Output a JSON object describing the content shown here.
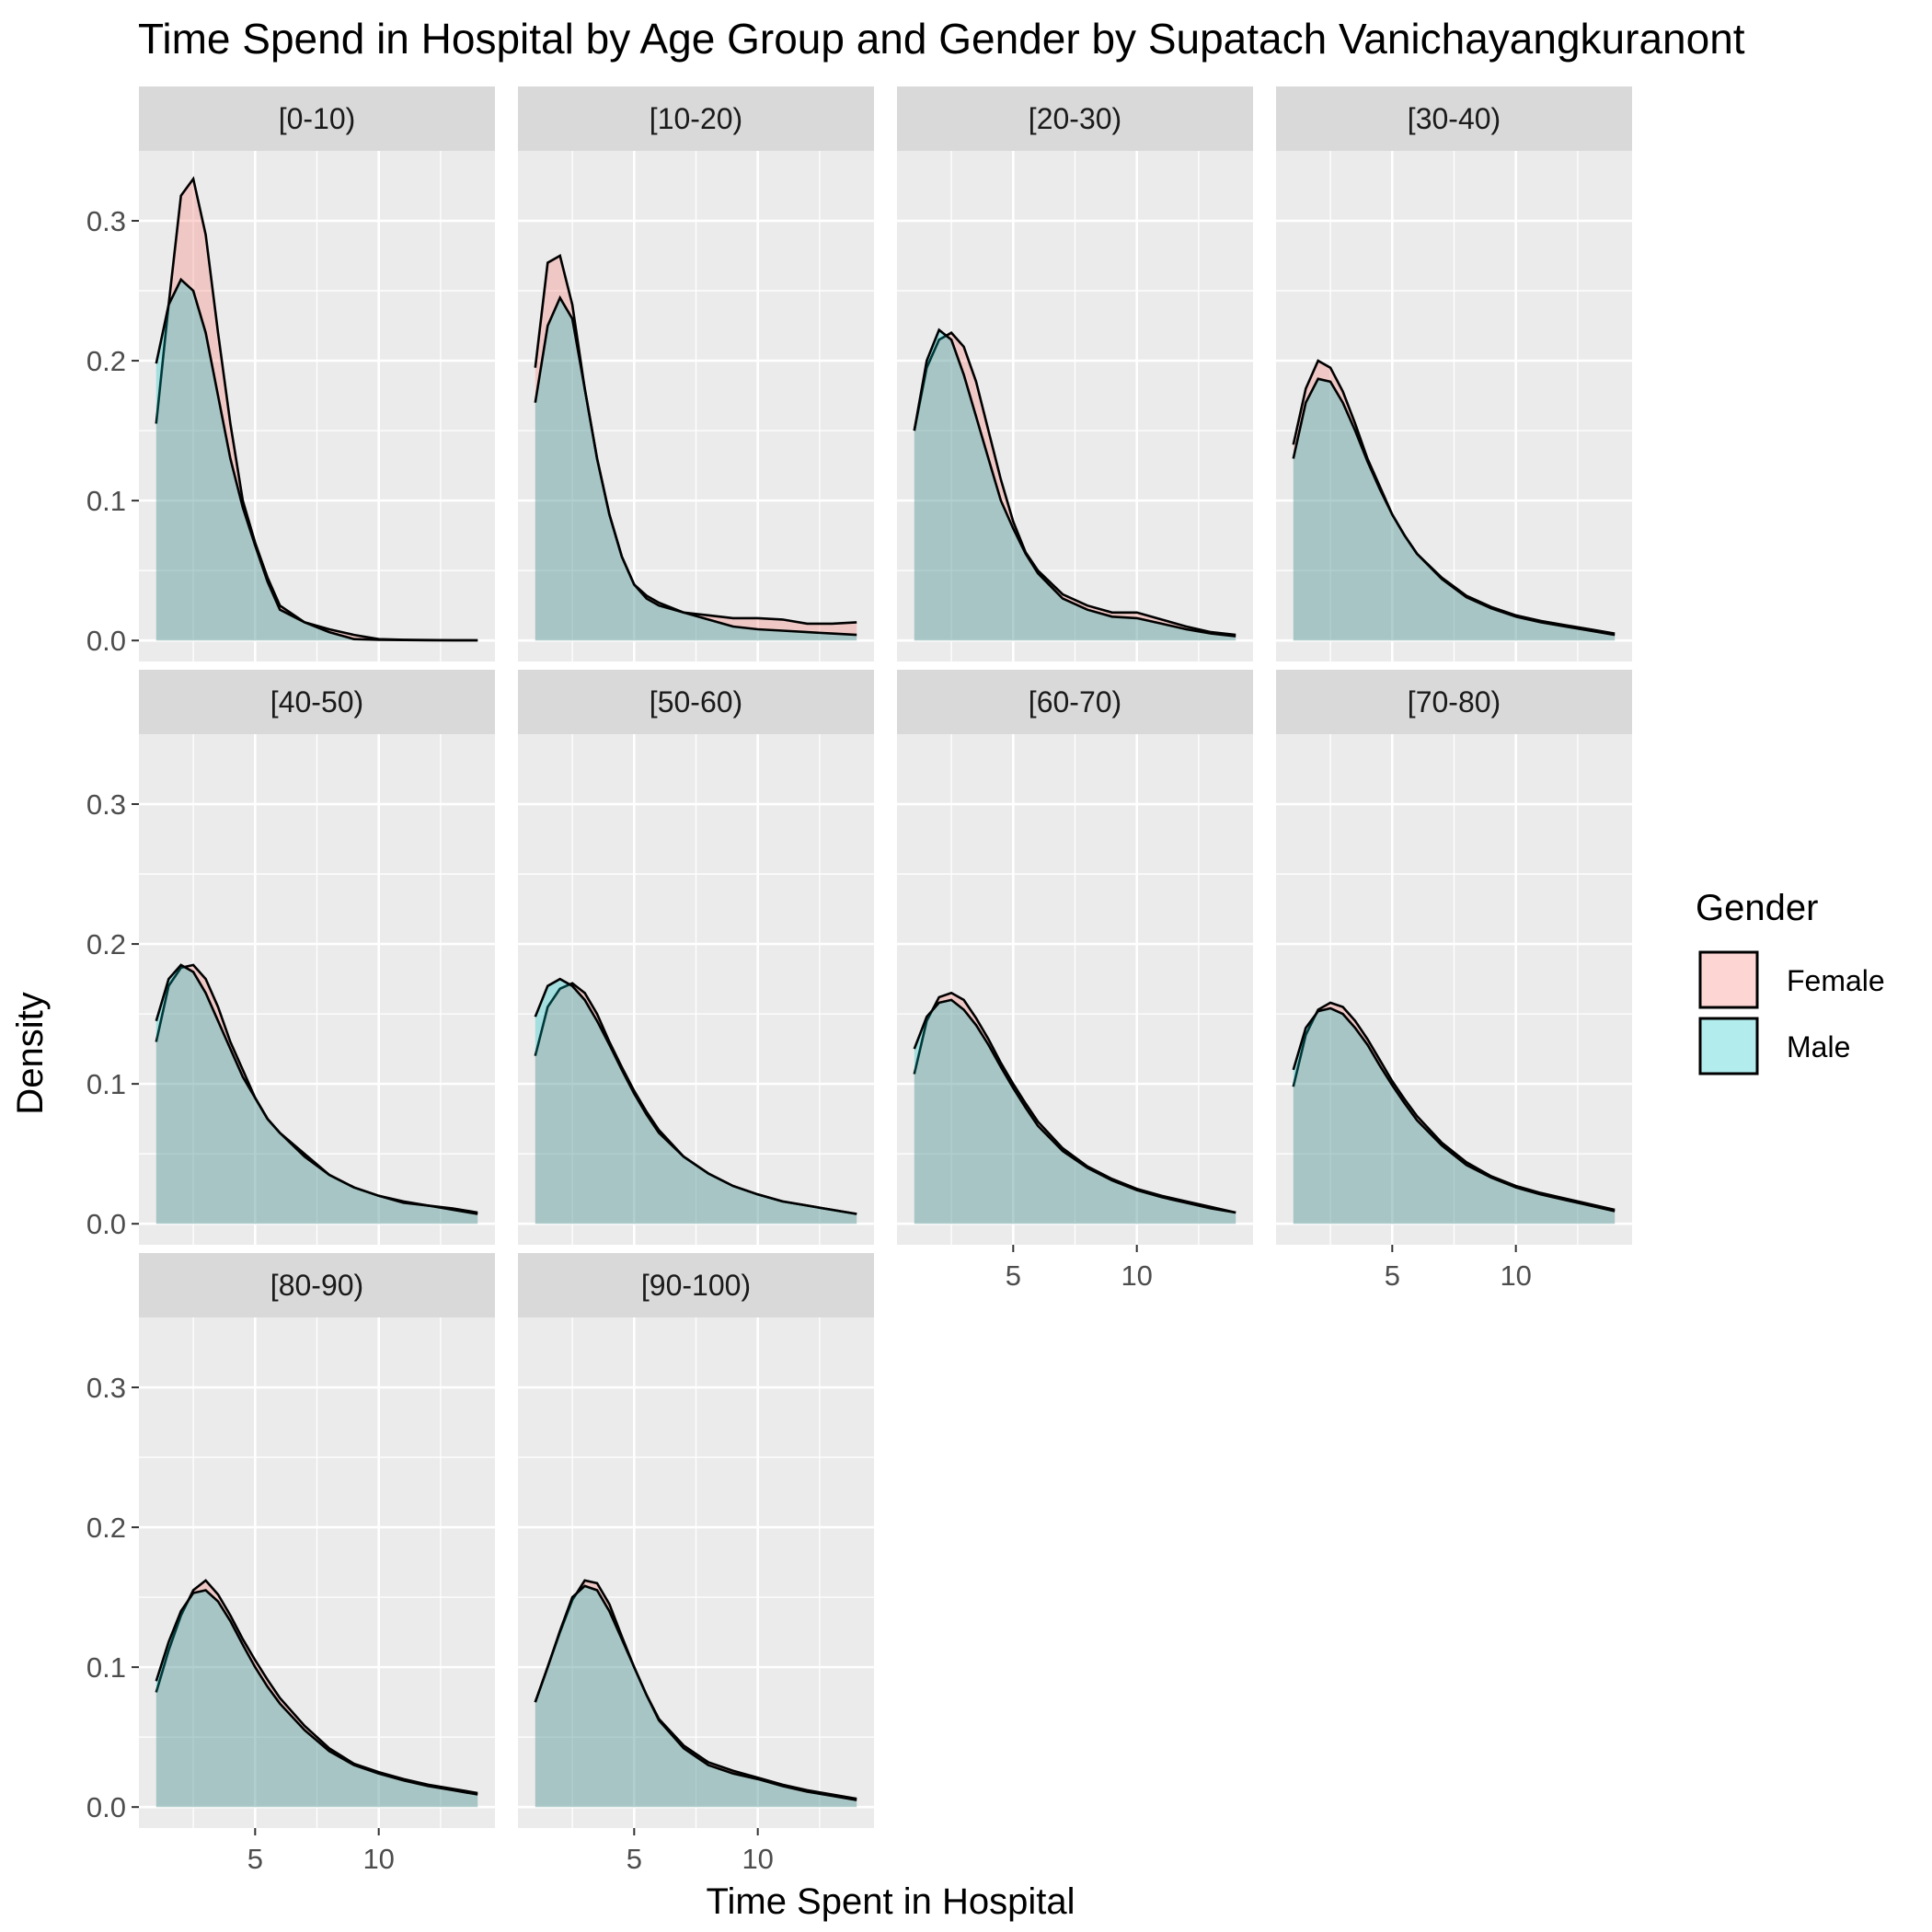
{
  "chart_data": {
    "type": "area",
    "title": "Time Spend in Hospital by Age Group and Gender by Supatach Vanichayangkuranont",
    "xlabel": "Time Spent in Hospital",
    "ylabel": "Density",
    "xlim": [
      0.3,
      14.7
    ],
    "ylim": [
      -0.015,
      0.35
    ],
    "x_ticks": [
      5,
      10
    ],
    "y_ticks": [
      0.0,
      0.1,
      0.2,
      0.3
    ],
    "y_tick_labels": [
      "0.0",
      "0.1",
      "0.2",
      "0.3"
    ],
    "grid": true,
    "legend": {
      "title": "Gender",
      "position": "right",
      "entries": [
        "Female",
        "Male"
      ]
    },
    "colors": {
      "Female": "#F8766D",
      "Male": "#00BFC4",
      "panel_background": "#EBEBEB",
      "strip_background": "#D9D9D9",
      "grid": "#FFFFFF"
    },
    "fill_alpha": 0.3,
    "x": [
      1,
      1.5,
      2,
      2.5,
      3,
      3.5,
      4,
      4.5,
      5,
      5.5,
      6,
      7,
      8,
      9,
      10,
      11,
      12,
      13,
      14
    ],
    "panels": [
      {
        "label": "[0-10)",
        "series": [
          {
            "name": "Female",
            "values": [
              0.155,
              0.24,
              0.318,
              0.33,
              0.29,
              0.22,
              0.155,
              0.1,
              0.07,
              0.045,
              0.025,
              0.013,
              0.008,
              0.004,
              0.001,
              0.0005,
              0.0003,
              0.0002,
              0.0001
            ]
          },
          {
            "name": "Male",
            "values": [
              0.198,
              0.24,
              0.258,
              0.25,
              0.22,
              0.175,
              0.13,
              0.095,
              0.068,
              0.042,
              0.022,
              0.013,
              0.006,
              0.001,
              0.0005,
              0.0003,
              0.0002,
              0.0001,
              0.0001
            ]
          }
        ]
      },
      {
        "label": "[10-20)",
        "series": [
          {
            "name": "Female",
            "values": [
              0.195,
              0.27,
              0.275,
              0.24,
              0.18,
              0.13,
              0.09,
              0.06,
              0.04,
              0.032,
              0.027,
              0.02,
              0.018,
              0.016,
              0.016,
              0.015,
              0.012,
              0.012,
              0.013
            ]
          },
          {
            "name": "Male",
            "values": [
              0.17,
              0.225,
              0.245,
              0.23,
              0.18,
              0.13,
              0.09,
              0.06,
              0.04,
              0.03,
              0.025,
              0.02,
              0.015,
              0.01,
              0.008,
              0.007,
              0.006,
              0.005,
              0.004
            ]
          }
        ]
      },
      {
        "label": "[20-30)",
        "series": [
          {
            "name": "Female",
            "values": [
              0.15,
              0.195,
              0.215,
              0.22,
              0.21,
              0.185,
              0.15,
              0.115,
              0.085,
              0.063,
              0.05,
              0.033,
              0.025,
              0.02,
              0.02,
              0.015,
              0.01,
              0.006,
              0.004
            ]
          },
          {
            "name": "Male",
            "values": [
              0.15,
              0.2,
              0.222,
              0.215,
              0.19,
              0.16,
              0.13,
              0.1,
              0.08,
              0.062,
              0.048,
              0.03,
              0.022,
              0.017,
              0.016,
              0.012,
              0.008,
              0.005,
              0.003
            ]
          }
        ]
      },
      {
        "label": "[30-40)",
        "series": [
          {
            "name": "Female",
            "values": [
              0.14,
              0.18,
              0.2,
              0.195,
              0.178,
              0.155,
              0.13,
              0.11,
              0.09,
              0.075,
              0.062,
              0.045,
              0.032,
              0.024,
              0.018,
              0.014,
              0.011,
              0.008,
              0.005
            ]
          },
          {
            "name": "Male",
            "values": [
              0.13,
              0.17,
              0.187,
              0.185,
              0.17,
              0.15,
              0.128,
              0.108,
              0.09,
              0.075,
              0.062,
              0.044,
              0.031,
              0.023,
              0.017,
              0.013,
              0.01,
              0.007,
              0.004
            ]
          }
        ]
      },
      {
        "label": "[40-50)",
        "series": [
          {
            "name": "Female",
            "values": [
              0.13,
              0.17,
              0.183,
              0.185,
              0.175,
              0.155,
              0.13,
              0.11,
              0.09,
              0.075,
              0.065,
              0.05,
              0.035,
              0.026,
              0.02,
              0.016,
              0.013,
              0.011,
              0.008
            ]
          },
          {
            "name": "Male",
            "values": [
              0.145,
              0.175,
              0.185,
              0.18,
              0.165,
              0.145,
              0.125,
              0.105,
              0.09,
              0.075,
              0.065,
              0.048,
              0.035,
              0.026,
              0.02,
              0.015,
              0.013,
              0.01,
              0.007
            ]
          }
        ]
      },
      {
        "label": "[50-60)",
        "series": [
          {
            "name": "Female",
            "values": [
              0.12,
              0.155,
              0.168,
              0.172,
              0.165,
              0.15,
              0.13,
              0.112,
              0.095,
              0.08,
              0.067,
              0.048,
              0.036,
              0.027,
              0.021,
              0.016,
              0.013,
              0.01,
              0.007
            ]
          },
          {
            "name": "Male",
            "values": [
              0.148,
              0.17,
              0.175,
              0.17,
              0.16,
              0.145,
              0.128,
              0.11,
              0.093,
              0.078,
              0.065,
              0.048,
              0.036,
              0.027,
              0.021,
              0.016,
              0.013,
              0.01,
              0.007
            ]
          }
        ]
      },
      {
        "label": "[60-70)",
        "series": [
          {
            "name": "Female",
            "values": [
              0.107,
              0.145,
              0.162,
              0.165,
              0.16,
              0.147,
              0.132,
              0.115,
              0.1,
              0.086,
              0.073,
              0.054,
              0.041,
              0.032,
              0.025,
              0.02,
              0.016,
              0.012,
              0.008
            ]
          },
          {
            "name": "Male",
            "values": [
              0.125,
              0.148,
              0.158,
              0.16,
              0.153,
              0.142,
              0.128,
              0.112,
              0.097,
              0.083,
              0.07,
              0.052,
              0.04,
              0.031,
              0.024,
              0.019,
              0.015,
              0.011,
              0.008
            ]
          }
        ]
      },
      {
        "label": "[70-80)",
        "series": [
          {
            "name": "Female",
            "values": [
              0.098,
              0.135,
              0.153,
              0.158,
              0.155,
              0.145,
              0.132,
              0.117,
              0.102,
              0.089,
              0.077,
              0.058,
              0.044,
              0.034,
              0.027,
              0.022,
              0.018,
              0.014,
              0.01
            ]
          },
          {
            "name": "Male",
            "values": [
              0.11,
              0.14,
              0.152,
              0.154,
              0.15,
              0.14,
              0.128,
              0.113,
              0.099,
              0.086,
              0.074,
              0.056,
              0.042,
              0.033,
              0.026,
              0.021,
              0.017,
              0.013,
              0.009
            ]
          }
        ]
      },
      {
        "label": "[80-90)",
        "series": [
          {
            "name": "Female",
            "values": [
              0.082,
              0.112,
              0.137,
              0.155,
              0.162,
              0.152,
              0.137,
              0.12,
              0.105,
              0.091,
              0.078,
              0.058,
              0.042,
              0.031,
              0.025,
              0.02,
              0.016,
              0.013,
              0.01
            ]
          },
          {
            "name": "Male",
            "values": [
              0.09,
              0.118,
              0.14,
              0.153,
              0.155,
              0.147,
              0.133,
              0.116,
              0.1,
              0.086,
              0.074,
              0.055,
              0.04,
              0.03,
              0.024,
              0.019,
              0.015,
              0.012,
              0.009
            ]
          }
        ]
      },
      {
        "label": "[90-100)",
        "series": [
          {
            "name": "Female",
            "values": [
              0.075,
              0.1,
              0.125,
              0.148,
              0.162,
              0.16,
              0.145,
              0.122,
              0.1,
              0.08,
              0.063,
              0.044,
              0.032,
              0.026,
              0.021,
              0.016,
              0.012,
              0.009,
              0.006
            ]
          },
          {
            "name": "Male",
            "values": [
              0.075,
              0.1,
              0.126,
              0.15,
              0.158,
              0.155,
              0.14,
              0.12,
              0.1,
              0.08,
              0.062,
              0.042,
              0.03,
              0.024,
              0.02,
              0.015,
              0.011,
              0.008,
              0.005
            ]
          }
        ]
      }
    ]
  }
}
